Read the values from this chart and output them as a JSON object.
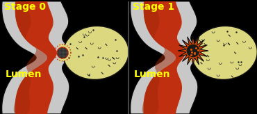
{
  "background_color": "#000000",
  "stage0_title": "Stage 0",
  "stage1_title": "Stage 1",
  "lumen_text": "Lumen",
  "title_color": "#ffff00",
  "lumen_color": "#ffff00",
  "title_fontsize": 10,
  "lumen_fontsize": 10,
  "colon_red": "#c03010",
  "colon_red2": "#a02808",
  "colon_wall_white": "#d4d4d4",
  "colon_wall_outline": "#111111",
  "diverticulum_fill": "#ddd880",
  "diverticulum_outline": "#111111",
  "plug_fill": "#505050",
  "plug_hatch": "#222222",
  "plug_outline_dot": "#cc2200",
  "abscess_orange": "#dd4400",
  "abscess_dark": "#1a1a1a",
  "dot_color": "#222222",
  "divider_color": "#444444"
}
